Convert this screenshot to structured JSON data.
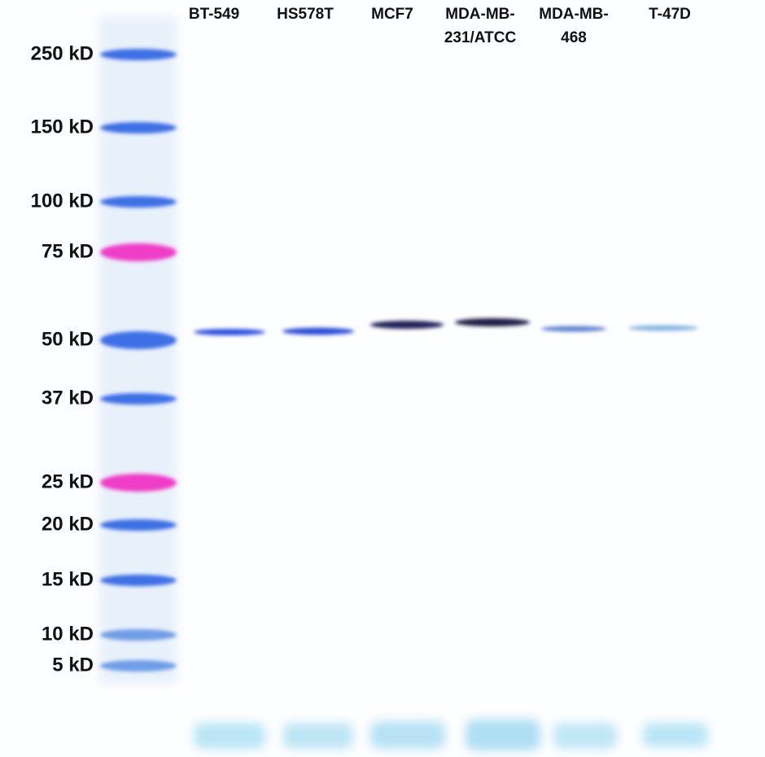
{
  "lanes": [
    [
      "BT-549"
    ],
    [
      "HS578T"
    ],
    [
      "MCF7"
    ],
    [
      "MDA-MB-",
      "231/ATCC"
    ],
    [
      "MDA-MB-",
      "468"
    ],
    [
      "T-47D"
    ]
  ],
  "markers": [
    "250 kD",
    "150 kD",
    "100 kD",
    "75 kD",
    "50 kD",
    "37 kD",
    "25 kD",
    "20 kD",
    "15 kD",
    "10 kD",
    "5 kD"
  ]
}
